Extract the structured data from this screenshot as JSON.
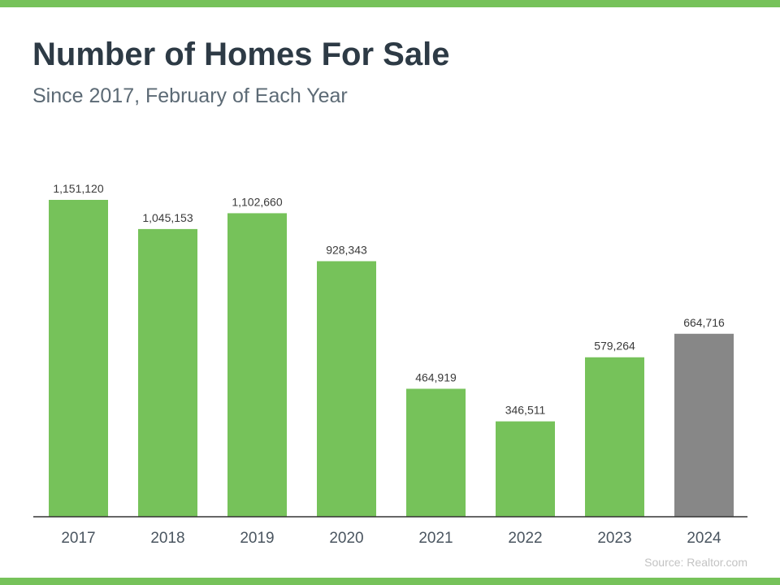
{
  "header": {
    "title": "Number of Homes For Sale",
    "subtitle": "Since 2017, February of Each Year"
  },
  "footer": {
    "source": "Source: Realtor.com"
  },
  "colors": {
    "accent": "#76c25a",
    "highlight": "#878787",
    "axis": "#333333",
    "title": "#2d3a45",
    "subtitle": "#5c6a75"
  },
  "chart_data": {
    "type": "bar",
    "title": "Number of Homes For Sale",
    "subtitle": "Since 2017, February of Each Year",
    "categories": [
      "2017",
      "2018",
      "2019",
      "2020",
      "2021",
      "2022",
      "2023",
      "2024"
    ],
    "values": [
      1151120,
      1045153,
      1102660,
      928343,
      464919,
      346511,
      579264,
      664716
    ],
    "value_labels": [
      "1,151,120",
      "1,045,153",
      "1,102,660",
      "928,343",
      "464,919",
      "346,511",
      "579,264",
      "664,716"
    ],
    "highlighted_category": "2024",
    "ylim": [
      0,
      1200000
    ],
    "grid": false,
    "legend": "none",
    "xlabel": "",
    "ylabel": ""
  }
}
